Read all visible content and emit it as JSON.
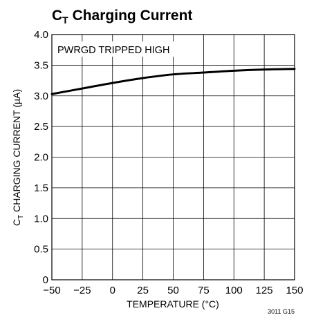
{
  "chart_data": {
    "type": "line",
    "title": {
      "main": "C",
      "sub": "T",
      "rest": " Charging Current"
    },
    "ylabel": {
      "main": "C",
      "sub": "T",
      "rest": " CHARGING CURRENT (µA)"
    },
    "xlabel": "TEMPERATURE (°C)",
    "annotation": "PWRGD TRIPPED HIGH",
    "figure_id": "3011 G15",
    "xlim": [
      -50,
      150
    ],
    "ylim": [
      0,
      4.0
    ],
    "x_ticks": [
      -50,
      -25,
      0,
      25,
      50,
      75,
      100,
      125,
      150
    ],
    "x_tick_labels": [
      "−50",
      "−25",
      "0",
      "25",
      "50",
      "75",
      "100",
      "125",
      "150"
    ],
    "y_ticks": [
      0,
      0.5,
      1.0,
      1.5,
      2.0,
      2.5,
      3.0,
      3.5,
      4.0
    ],
    "y_tick_labels": [
      "0",
      "0.5",
      "1.0",
      "1.5",
      "2.0",
      "2.5",
      "3.0",
      "3.5",
      "4.0"
    ],
    "grid": true,
    "series": [
      {
        "x": [
          -50,
          -25,
          0,
          25,
          50,
          75,
          100,
          125,
          150
        ],
        "y": [
          3.03,
          3.12,
          3.21,
          3.29,
          3.35,
          3.38,
          3.41,
          3.43,
          3.44
        ]
      }
    ]
  }
}
